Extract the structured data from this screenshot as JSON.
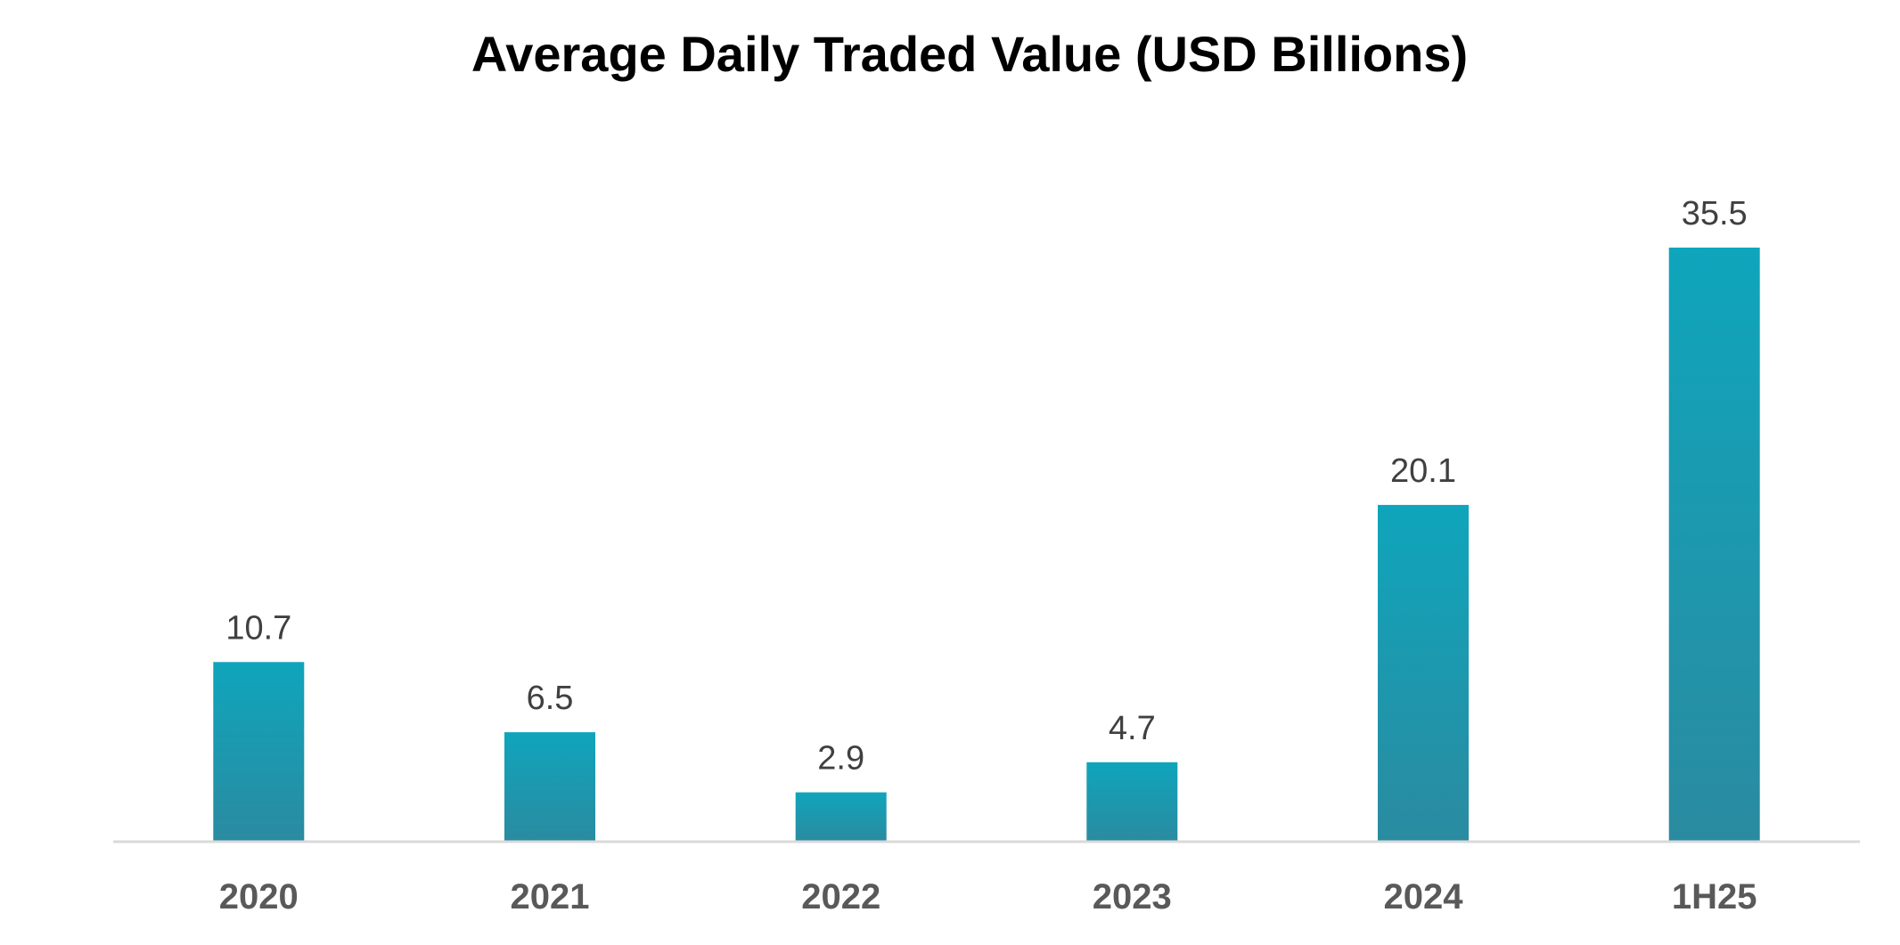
{
  "chart_data": {
    "type": "bar",
    "title": "Average Daily Traded Value (USD Billions)",
    "categories": [
      "2020",
      "2021",
      "2022",
      "2023",
      "2024",
      "1H25"
    ],
    "values": [
      10.7,
      6.5,
      2.9,
      4.7,
      20.1,
      35.5
    ],
    "data_labels": [
      "10.7",
      "6.5",
      "2.9",
      "4.7",
      "20.1",
      "35.5"
    ],
    "xlabel": "",
    "ylabel": "",
    "ylim": [
      0,
      35.5
    ],
    "grid": false,
    "legend": "none",
    "colors": {
      "bar_top": "#0fa5bc",
      "bar_bottom": "#2a8ba0",
      "axis": "#d9d9d9",
      "title": "#000000",
      "data_label": "#404040",
      "tick_label": "#595959"
    }
  }
}
